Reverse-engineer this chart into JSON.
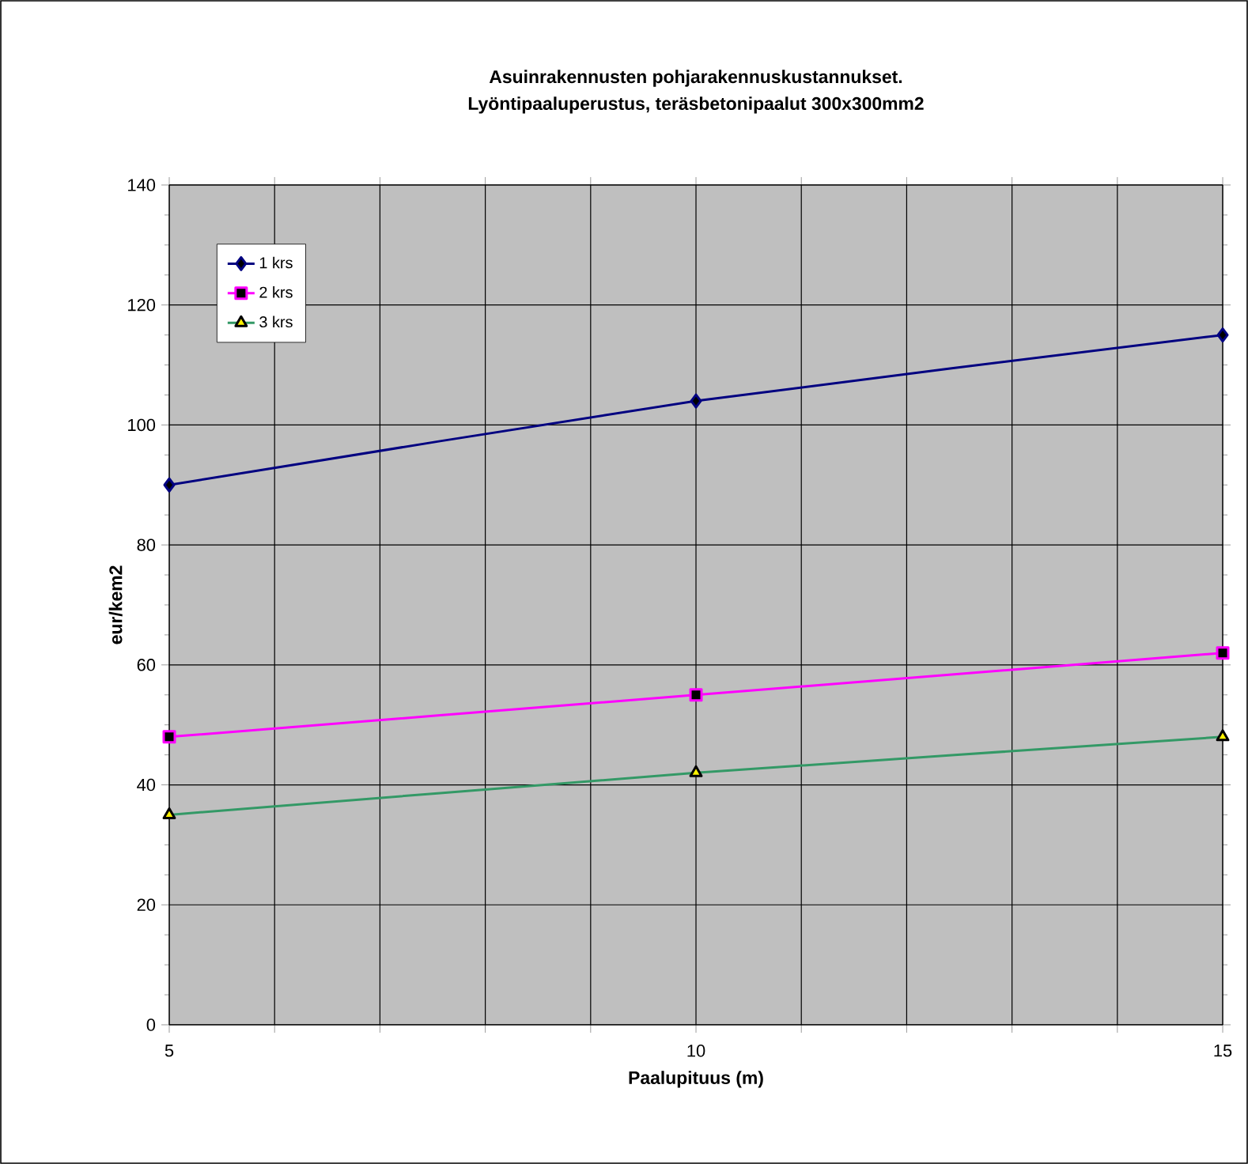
{
  "chart_data": {
    "type": "line",
    "title": "Asuinrakennusten pohjarakennuskustannukset.\nLyöntipaaluperustus, teräsbetonipaalut 300x300mm2",
    "xlabel": "Paalupituus (m)",
    "ylabel": "eur/kem2",
    "x": [
      5,
      10,
      15
    ],
    "series": [
      {
        "name": "1 krs",
        "color": "#000080",
        "marker": "diamond",
        "values": [
          90,
          104,
          115
        ]
      },
      {
        "name": "2 krs",
        "color": "#ff00ff",
        "marker": "square",
        "values": [
          48,
          55,
          62
        ]
      },
      {
        "name": "3 krs",
        "color": "#339966",
        "marker": "triangle",
        "values": [
          35,
          42,
          48
        ]
      }
    ],
    "xlim": [
      5,
      15
    ],
    "xticks": [
      5,
      {
        "value": 6,
        "label": null
      },
      {
        "value": 7,
        "label": null
      },
      {
        "value": 8,
        "label": null
      },
      {
        "value": 9,
        "label": null
      },
      10,
      {
        "value": 11,
        "label": null
      },
      {
        "value": 12,
        "label": null
      },
      {
        "value": 13,
        "label": null
      },
      {
        "value": 14,
        "label": null
      },
      15
    ],
    "ylim": [
      0,
      140
    ],
    "yticks": [
      0,
      20,
      40,
      60,
      80,
      100,
      120,
      140
    ],
    "grid": true,
    "legend": "top left",
    "line_style": "solid"
  }
}
